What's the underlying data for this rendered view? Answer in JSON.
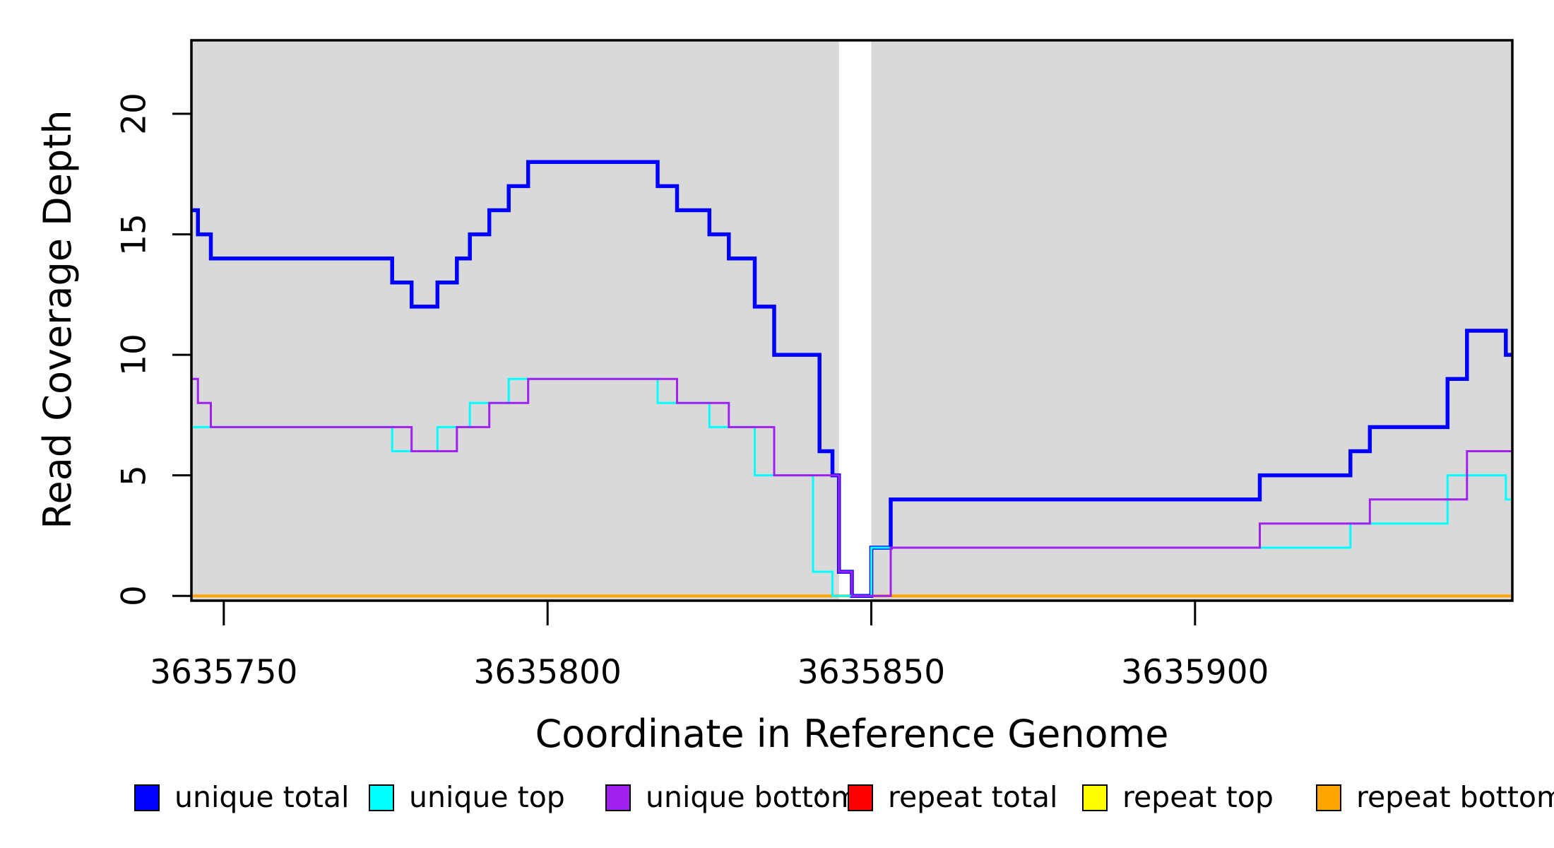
{
  "chart_data": {
    "type": "line",
    "step": "after",
    "title": "",
    "xlabel": "Coordinate in Reference Genome",
    "ylabel": "Read Coverage Depth",
    "x_range": [
      3635745,
      3635949
    ],
    "y_range": [
      -0.2,
      23.05
    ],
    "x_ticks": [
      3635750,
      3635800,
      3635850,
      3635900
    ],
    "y_ticks": [
      0,
      5,
      10,
      15,
      20
    ],
    "grid": false,
    "band_color": "#D9D9D9",
    "bands": [
      [
        3635745,
        3635845
      ],
      [
        3635850,
        3635949
      ]
    ],
    "series": [
      {
        "name": "repeat total",
        "color": "#FF0000",
        "width": 3,
        "points": [
          [
            3635745,
            0
          ]
        ]
      },
      {
        "name": "repeat top",
        "color": "#FFFF00",
        "width": 3,
        "points": [
          [
            3635745,
            0
          ]
        ]
      },
      {
        "name": "repeat bottom",
        "color": "#FFA500",
        "width": 4,
        "points": [
          [
            3635745,
            0
          ]
        ]
      },
      {
        "name": "unique total",
        "color": "#0000FF",
        "width": 5.5,
        "points": [
          [
            3635745,
            16
          ],
          [
            3635746,
            15
          ],
          [
            3635748,
            14
          ],
          [
            3635776,
            13
          ],
          [
            3635779,
            12
          ],
          [
            3635783,
            13
          ],
          [
            3635786,
            14
          ],
          [
            3635788,
            15
          ],
          [
            3635791,
            16
          ],
          [
            3635794,
            17
          ],
          [
            3635797,
            18
          ],
          [
            3635817,
            17
          ],
          [
            3635820,
            16
          ],
          [
            3635825,
            15
          ],
          [
            3635828,
            14
          ],
          [
            3635832,
            12
          ],
          [
            3635835,
            10
          ],
          [
            3635842,
            6
          ],
          [
            3635844,
            5
          ],
          [
            3635845,
            1
          ],
          [
            3635847,
            0
          ],
          [
            3635850,
            2
          ],
          [
            3635853,
            4
          ],
          [
            3635910,
            5
          ],
          [
            3635924,
            6
          ],
          [
            3635927,
            7
          ],
          [
            3635939,
            9
          ],
          [
            3635942,
            11
          ],
          [
            3635948,
            10
          ]
        ]
      },
      {
        "name": "unique top",
        "color": "#00FFFF",
        "width": 3,
        "points": [
          [
            3635745,
            7
          ],
          [
            3635776,
            6
          ],
          [
            3635783,
            7
          ],
          [
            3635788,
            8
          ],
          [
            3635794,
            9
          ],
          [
            3635817,
            8
          ],
          [
            3635825,
            7
          ],
          [
            3635832,
            5
          ],
          [
            3635841,
            1
          ],
          [
            3635844,
            0
          ],
          [
            3635850,
            2
          ],
          [
            3635924,
            3
          ],
          [
            3635939,
            5
          ],
          [
            3635948,
            4
          ]
        ]
      },
      {
        "name": "unique bottom",
        "color": "#A020F0",
        "width": 3,
        "points": [
          [
            3635745,
            9
          ],
          [
            3635746,
            8
          ],
          [
            3635748,
            7
          ],
          [
            3635779,
            6
          ],
          [
            3635786,
            7
          ],
          [
            3635791,
            8
          ],
          [
            3635797,
            9
          ],
          [
            3635820,
            8
          ],
          [
            3635828,
            7
          ],
          [
            3635835,
            5
          ],
          [
            3635845,
            1
          ],
          [
            3635847,
            0
          ],
          [
            3635853,
            2
          ],
          [
            3635910,
            3
          ],
          [
            3635927,
            4
          ],
          [
            3635942,
            6
          ]
        ]
      }
    ]
  },
  "legend": {
    "items": [
      {
        "label": "unique total",
        "color": "#0000FF"
      },
      {
        "label": "unique top",
        "color": "#00FFFF"
      },
      {
        "label": "unique bottom",
        "color": "#A020F0"
      },
      {
        "label": "repeat total",
        "color": "#FF0000"
      },
      {
        "label": "repeat top",
        "color": "#FFFF00"
      },
      {
        "label": "repeat bottom",
        "color": "#FFA500"
      }
    ]
  }
}
